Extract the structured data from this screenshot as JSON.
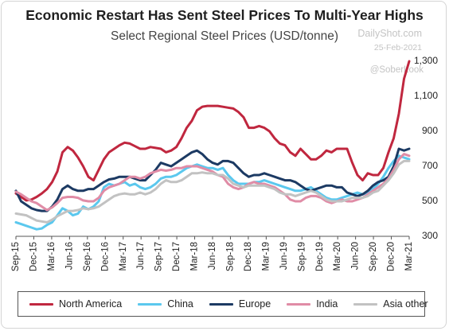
{
  "title": "Economic Restart Has Sent Steel Prices To Multi-Year Highs",
  "subtitle": "Select Regional Steel Prices (USD/tonne)",
  "watermark": {
    "brand": "DailyShot.com",
    "date": "25-Feb-2021",
    "handle": "@SoberLook"
  },
  "chart_data": {
    "type": "line",
    "ylim": [
      300,
      1350
    ],
    "yticks": [
      300,
      500,
      700,
      900,
      1100,
      1300
    ],
    "ytick_labels": [
      "300",
      "500",
      "700",
      "900",
      "1,100",
      "1,300"
    ],
    "y_axis_position": "right",
    "grid": false,
    "x_tick_labels": [
      "Sep-15",
      "Dec-15",
      "Mar-16",
      "Jun-16",
      "Sep-16",
      "Dec-16",
      "Mar-17",
      "Jun-17",
      "Sep-17",
      "Dec-17",
      "Mar-18",
      "Jun-18",
      "Sep-18",
      "Dec-18",
      "Mar-19",
      "Jun-19",
      "Sep-19",
      "Dec-19",
      "Mar-20",
      "Jun-20",
      "Sep-20",
      "Dec-20",
      "Mar-21"
    ],
    "x_tick_index": [
      0,
      3,
      6,
      9,
      12,
      15,
      18,
      21,
      24,
      27,
      30,
      33,
      36,
      39,
      42,
      45,
      48,
      51,
      54,
      57,
      60,
      63,
      66
    ],
    "legend_position": "bottom",
    "series": [
      {
        "name": "North America",
        "color": "#c0273f",
        "values": [
          545,
          525,
          505,
          510,
          525,
          545,
          570,
          610,
          670,
          780,
          810,
          790,
          750,
          700,
          640,
          620,
          680,
          740,
          780,
          800,
          820,
          835,
          830,
          815,
          800,
          800,
          810,
          805,
          800,
          780,
          790,
          810,
          860,
          920,
          960,
          1020,
          1040,
          1045,
          1045,
          1045,
          1040,
          1035,
          1030,
          1010,
          980,
          920,
          920,
          930,
          920,
          900,
          860,
          830,
          820,
          780,
          760,
          800,
          770,
          740,
          740,
          760,
          790,
          780,
          800,
          800,
          800,
          720,
          650,
          620,
          660,
          650,
          650,
          690,
          780,
          860,
          1000,
          1200,
          1300
        ]
      },
      {
        "name": "China",
        "color": "#5bc8ee",
        "values": [
          380,
          370,
          360,
          350,
          340,
          345,
          365,
          380,
          420,
          460,
          445,
          420,
          430,
          470,
          455,
          470,
          500,
          580,
          600,
          590,
          600,
          610,
          590,
          600,
          580,
          570,
          580,
          600,
          630,
          640,
          640,
          650,
          670,
          690,
          700,
          710,
          700,
          690,
          690,
          680,
          690,
          650,
          620,
          600,
          600,
          600,
          610,
          610,
          620,
          610,
          600,
          590,
          580,
          570,
          560,
          560,
          570,
          580,
          560,
          540,
          520,
          510,
          510,
          520,
          530,
          540,
          550,
          540,
          550,
          570,
          600,
          640,
          690,
          730,
          760,
          750,
          740
        ]
      },
      {
        "name": "Europe",
        "color": "#1c3a63",
        "values": [
          560,
          500,
          480,
          460,
          450,
          445,
          445,
          470,
          510,
          570,
          590,
          570,
          560,
          560,
          570,
          570,
          590,
          610,
          625,
          630,
          640,
          640,
          640,
          630,
          620,
          620,
          650,
          680,
          720,
          710,
          700,
          720,
          740,
          760,
          780,
          790,
          770,
          740,
          720,
          710,
          730,
          730,
          720,
          690,
          660,
          640,
          650,
          650,
          660,
          650,
          640,
          630,
          620,
          620,
          610,
          590,
          570,
          560,
          570,
          580,
          590,
          590,
          580,
          580,
          550,
          540,
          530,
          540,
          560,
          590,
          610,
          620,
          640,
          700,
          800,
          790,
          800
        ]
      },
      {
        "name": "India",
        "color": "#e08ca6",
        "values": [
          555,
          540,
          520,
          500,
          490,
          470,
          450,
          465,
          490,
          520,
          525,
          525,
          520,
          505,
          500,
          500,
          520,
          560,
          580,
          590,
          600,
          620,
          640,
          640,
          630,
          640,
          660,
          670,
          680,
          675,
          680,
          690,
          690,
          700,
          700,
          700,
          690,
          680,
          670,
          650,
          640,
          600,
          580,
          570,
          580,
          600,
          610,
          600,
          600,
          590,
          580,
          560,
          540,
          510,
          500,
          500,
          520,
          530,
          530,
          520,
          500,
          490,
          500,
          510,
          500,
          500,
          510,
          520,
          540,
          560,
          580,
          600,
          630,
          680,
          740,
          770,
          760
        ]
      },
      {
        "name": "Asia other",
        "color": "#c2c2c2",
        "values": [
          430,
          425,
          420,
          405,
          390,
          385,
          380,
          395,
          415,
          430,
          445,
          445,
          450,
          460,
          455,
          460,
          470,
          490,
          510,
          530,
          540,
          545,
          540,
          540,
          550,
          540,
          550,
          570,
          600,
          620,
          610,
          610,
          620,
          640,
          660,
          660,
          665,
          660,
          660,
          650,
          650,
          630,
          600,
          590,
          580,
          590,
          590,
          590,
          590,
          580,
          570,
          550,
          540,
          540,
          530,
          540,
          550,
          560,
          550,
          530,
          510,
          500,
          500,
          500,
          510,
          520,
          520,
          520,
          530,
          550,
          560,
          590,
          620,
          660,
          710,
          730,
          730
        ]
      }
    ]
  }
}
